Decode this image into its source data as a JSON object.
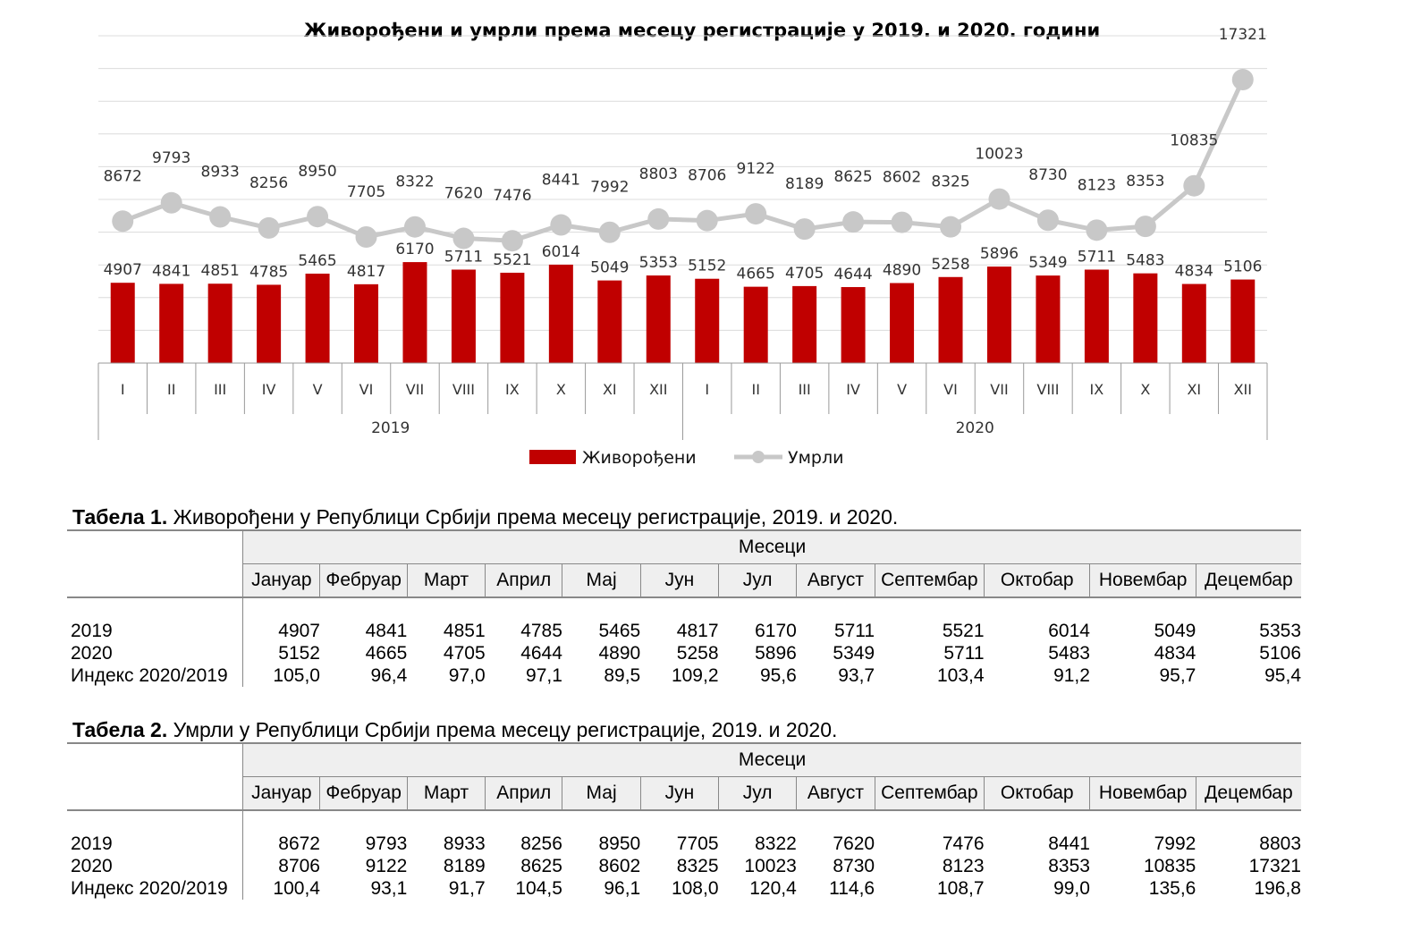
{
  "chart_data": {
    "type": "bar+line",
    "title": "Живорођени и умрли према месецу регистрације у 2019.  и 2020. години",
    "categories": [
      "I",
      "II",
      "III",
      "IV",
      "V",
      "VI",
      "VII",
      "VIII",
      "IX",
      "X",
      "XI",
      "XII",
      "I",
      "II",
      "III",
      "IV",
      "V",
      "VI",
      "VII",
      "VIII",
      "IX",
      "X",
      "XI",
      "XII"
    ],
    "groups": [
      {
        "label": "2019",
        "count": 12
      },
      {
        "label": "2020",
        "count": 12
      }
    ],
    "series": [
      {
        "name": "Живорођени",
        "type": "bar",
        "color": "#c00000",
        "values": [
          4907,
          4841,
          4851,
          4785,
          5465,
          4817,
          6170,
          5711,
          5521,
          6014,
          5049,
          5353,
          5152,
          4665,
          4705,
          4644,
          4890,
          5258,
          5896,
          5349,
          5711,
          5483,
          4834,
          5106
        ]
      },
      {
        "name": "Умрли",
        "type": "line",
        "color": "#c8c8c8",
        "values": [
          8672,
          9793,
          8933,
          8256,
          8950,
          7705,
          8322,
          7620,
          7476,
          8441,
          7992,
          8803,
          8706,
          9122,
          8189,
          8625,
          8602,
          8325,
          10023,
          8730,
          8123,
          8353,
          10835,
          17321
        ]
      }
    ],
    "ylim": [
      0,
      20000
    ],
    "grid": true,
    "legend": "bottom"
  },
  "table1": {
    "title_bold": "Табела 1.",
    "title_rest": " Живорођени у Републици Србији према месецу регистрације, 2019. и 2020.",
    "group_header": "Месеци",
    "months": [
      "Јануар",
      "Фебруар",
      "Март",
      "Април",
      "Мај",
      "Јун",
      "Јул",
      "Август",
      "Септембар",
      "Октобар",
      "Новембар",
      "Децембар"
    ],
    "rows": [
      {
        "label": "2019",
        "values": [
          "4907",
          "4841",
          "4851",
          "4785",
          "5465",
          "4817",
          "6170",
          "5711",
          "5521",
          "6014",
          "5049",
          "5353"
        ]
      },
      {
        "label": "2020",
        "values": [
          "5152",
          "4665",
          "4705",
          "4644",
          "4890",
          "5258",
          "5896",
          "5349",
          "5711",
          "5483",
          "4834",
          "5106"
        ]
      },
      {
        "label": "Индекс 2020/2019",
        "values": [
          "105,0",
          "96,4",
          "97,0",
          "97,1",
          "89,5",
          "109,2",
          "95,6",
          "93,7",
          "103,4",
          "91,2",
          "95,7",
          "95,4"
        ]
      }
    ]
  },
  "table2": {
    "title_bold": "Табела 2.",
    "title_rest": " Умрли у Републици Србији према месецу регистрације, 2019. и 2020.",
    "group_header": "Месеци",
    "months": [
      "Јануар",
      "Фебруар",
      "Март",
      "Април",
      "Мај",
      "Јун",
      "Јул",
      "Август",
      "Септембар",
      "Октобар",
      "Новембар",
      "Децембар"
    ],
    "rows": [
      {
        "label": "2019",
        "values": [
          "8672",
          "9793",
          "8933",
          "8256",
          "8950",
          "7705",
          "8322",
          "7620",
          "7476",
          "8441",
          "7992",
          "8803"
        ]
      },
      {
        "label": "2020",
        "values": [
          "8706",
          "9122",
          "8189",
          "8625",
          "8602",
          "8325",
          "10023",
          "8730",
          "8123",
          "8353",
          "10835",
          "17321"
        ]
      },
      {
        "label": "Индекс 2020/2019",
        "values": [
          "100,4",
          "93,1",
          "91,7",
          "104,5",
          "96,1",
          "108,0",
          "120,4",
          "114,6",
          "108,7",
          "99,0",
          "135,6",
          "196,8"
        ]
      }
    ]
  }
}
